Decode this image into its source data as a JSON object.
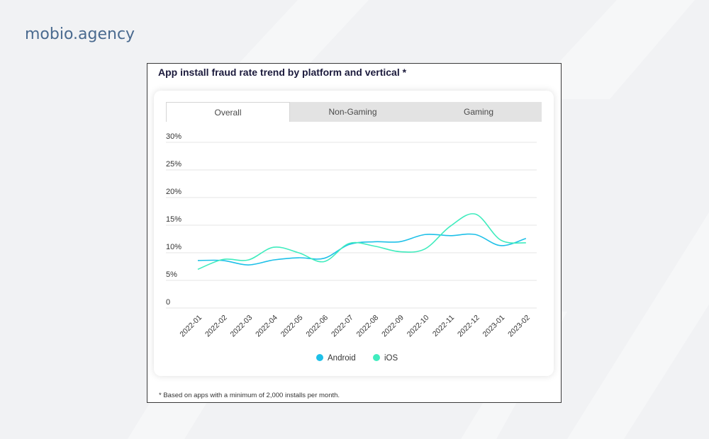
{
  "brand": {
    "text": "mobio.agency",
    "color": "#4a6a8f"
  },
  "card": {
    "title": "App install fraud rate trend by platform and vertical *",
    "footnote": "* Based on apps with a minimum of 2,000 installs per month."
  },
  "tabs": [
    {
      "label": "Overall",
      "active": true
    },
    {
      "label": "Non-Gaming",
      "active": false
    },
    {
      "label": "Gaming",
      "active": false
    }
  ],
  "chart_data": {
    "type": "line",
    "title": "",
    "xlabel": "",
    "ylabel": "",
    "ylim": [
      0,
      30
    ],
    "yticks": [
      "0",
      "5%",
      "10%",
      "15%",
      "20%",
      "25%",
      "30%"
    ],
    "grid": true,
    "legend_placement": "bottom-center",
    "categories": [
      "2022-01",
      "2022-02",
      "2022-03",
      "2022-04",
      "2022-05",
      "2022-06",
      "2022-07",
      "2022-08",
      "2022-09",
      "2022-10",
      "2022-11",
      "2022-12",
      "2023-01",
      "2023-02"
    ],
    "series": [
      {
        "name": "Android",
        "color": "#1ec0e8",
        "values": [
          8.6,
          8.6,
          7.8,
          8.7,
          9.1,
          9.0,
          11.5,
          12.0,
          12.0,
          13.3,
          13.1,
          13.3,
          11.3,
          12.6
        ]
      },
      {
        "name": "iOS",
        "color": "#40ecbe",
        "values": [
          7.0,
          8.8,
          8.7,
          11.0,
          10.0,
          8.4,
          11.7,
          11.2,
          10.2,
          10.7,
          14.8,
          17.0,
          12.3,
          11.8
        ]
      }
    ]
  }
}
